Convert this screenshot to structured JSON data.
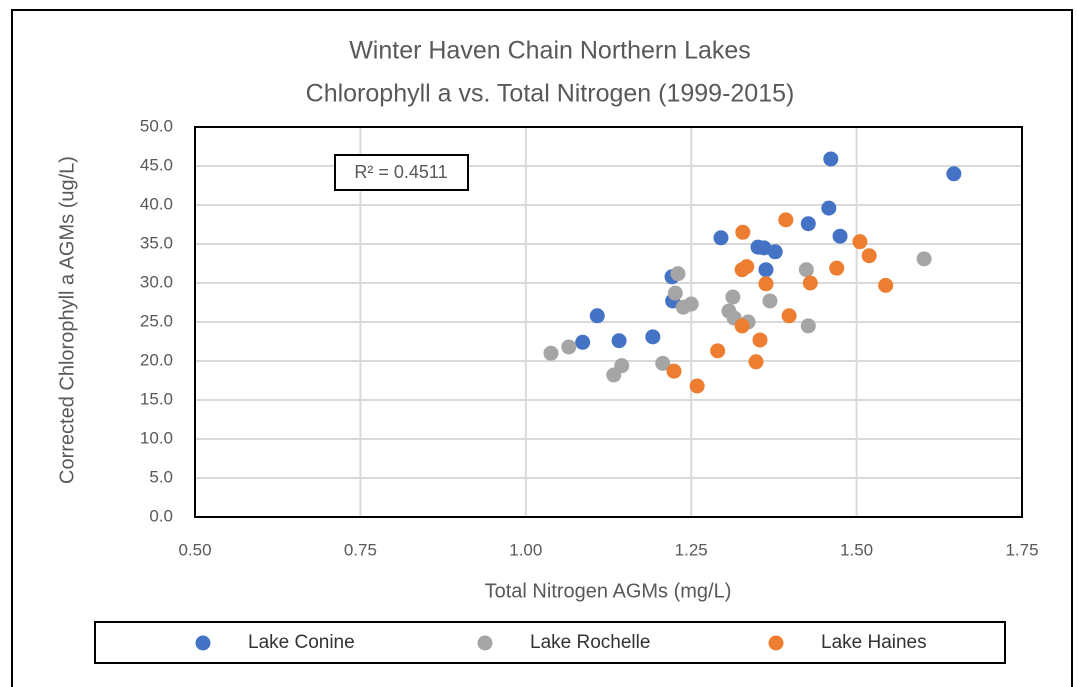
{
  "chart_data": {
    "type": "scatter",
    "title": "Winter Haven Chain Northern Lakes",
    "subtitle": "Chlorophyll a vs. Total Nitrogen (1999-2015)",
    "x_label": "Total Nitrogen AGMs (mg/L)",
    "y_label": "Corrected Chlorophyll a AGMs (ug/L)",
    "annotation": "R² = 0.4511",
    "xlim": [
      0.5,
      1.75
    ],
    "xticks": [
      {
        "value": 0.5,
        "label": "0.50"
      },
      {
        "value": 0.75,
        "label": "0.75"
      },
      {
        "value": 1,
        "label": "1.00"
      },
      {
        "value": 1.25,
        "label": "1.25"
      },
      {
        "value": 1.5,
        "label": "1.50"
      },
      {
        "value": 1.75,
        "label": "1.75"
      }
    ],
    "ylim": [
      0,
      50
    ],
    "yticks": [
      {
        "value": 0,
        "label": "0.0"
      },
      {
        "value": 5,
        "label": "5.0"
      },
      {
        "value": 10,
        "label": "10.0"
      },
      {
        "value": 15,
        "label": "15.0"
      },
      {
        "value": 20,
        "label": "20.0"
      },
      {
        "value": 25,
        "label": "25.0"
      },
      {
        "value": 30,
        "label": "30.0"
      },
      {
        "value": 35,
        "label": "35.0"
      },
      {
        "value": 40,
        "label": "40.0"
      },
      {
        "value": 45,
        "label": "45.0"
      },
      {
        "value": 50,
        "label": "50.0"
      }
    ],
    "grid": true,
    "legend": "bottom",
    "series": [
      {
        "name": "Lake Conine",
        "color": "#4472c4",
        "x": [
          1.461,
          1.647,
          1.458,
          1.427,
          1.475,
          1.295,
          1.351,
          1.36,
          1.377,
          1.363,
          1.221,
          1.222,
          1.108,
          1.086,
          1.141,
          1.192
        ],
        "values": [
          45.9,
          44.0,
          39.6,
          37.6,
          36.0,
          35.8,
          34.6,
          34.5,
          34.0,
          31.7,
          30.8,
          27.7,
          25.8,
          22.4,
          22.6,
          23.1
        ]
      },
      {
        "name": "Lake Rochelle",
        "color": "#a5a5a5",
        "x": [
          1.602,
          1.424,
          1.23,
          1.226,
          1.313,
          1.369,
          1.25,
          1.238,
          1.307,
          1.315,
          1.336,
          1.427,
          1.065,
          1.038,
          1.145,
          1.207,
          1.133
        ],
        "values": [
          33.1,
          31.7,
          31.2,
          28.7,
          28.2,
          27.7,
          27.3,
          26.9,
          26.4,
          25.5,
          25.0,
          24.5,
          21.8,
          21.0,
          19.4,
          19.7,
          18.2
        ]
      },
      {
        "name": "Lake Haines",
        "color": "#ed7d31",
        "x": [
          1.393,
          1.328,
          1.505,
          1.519,
          1.334,
          1.327,
          1.47,
          1.363,
          1.43,
          1.544,
          1.398,
          1.327,
          1.354,
          1.29,
          1.348,
          1.224,
          1.259
        ],
        "values": [
          38.1,
          36.5,
          35.3,
          33.5,
          32.1,
          31.7,
          31.9,
          29.9,
          30.0,
          29.7,
          25.8,
          24.5,
          22.7,
          21.3,
          19.9,
          18.7,
          16.8
        ]
      }
    ]
  }
}
